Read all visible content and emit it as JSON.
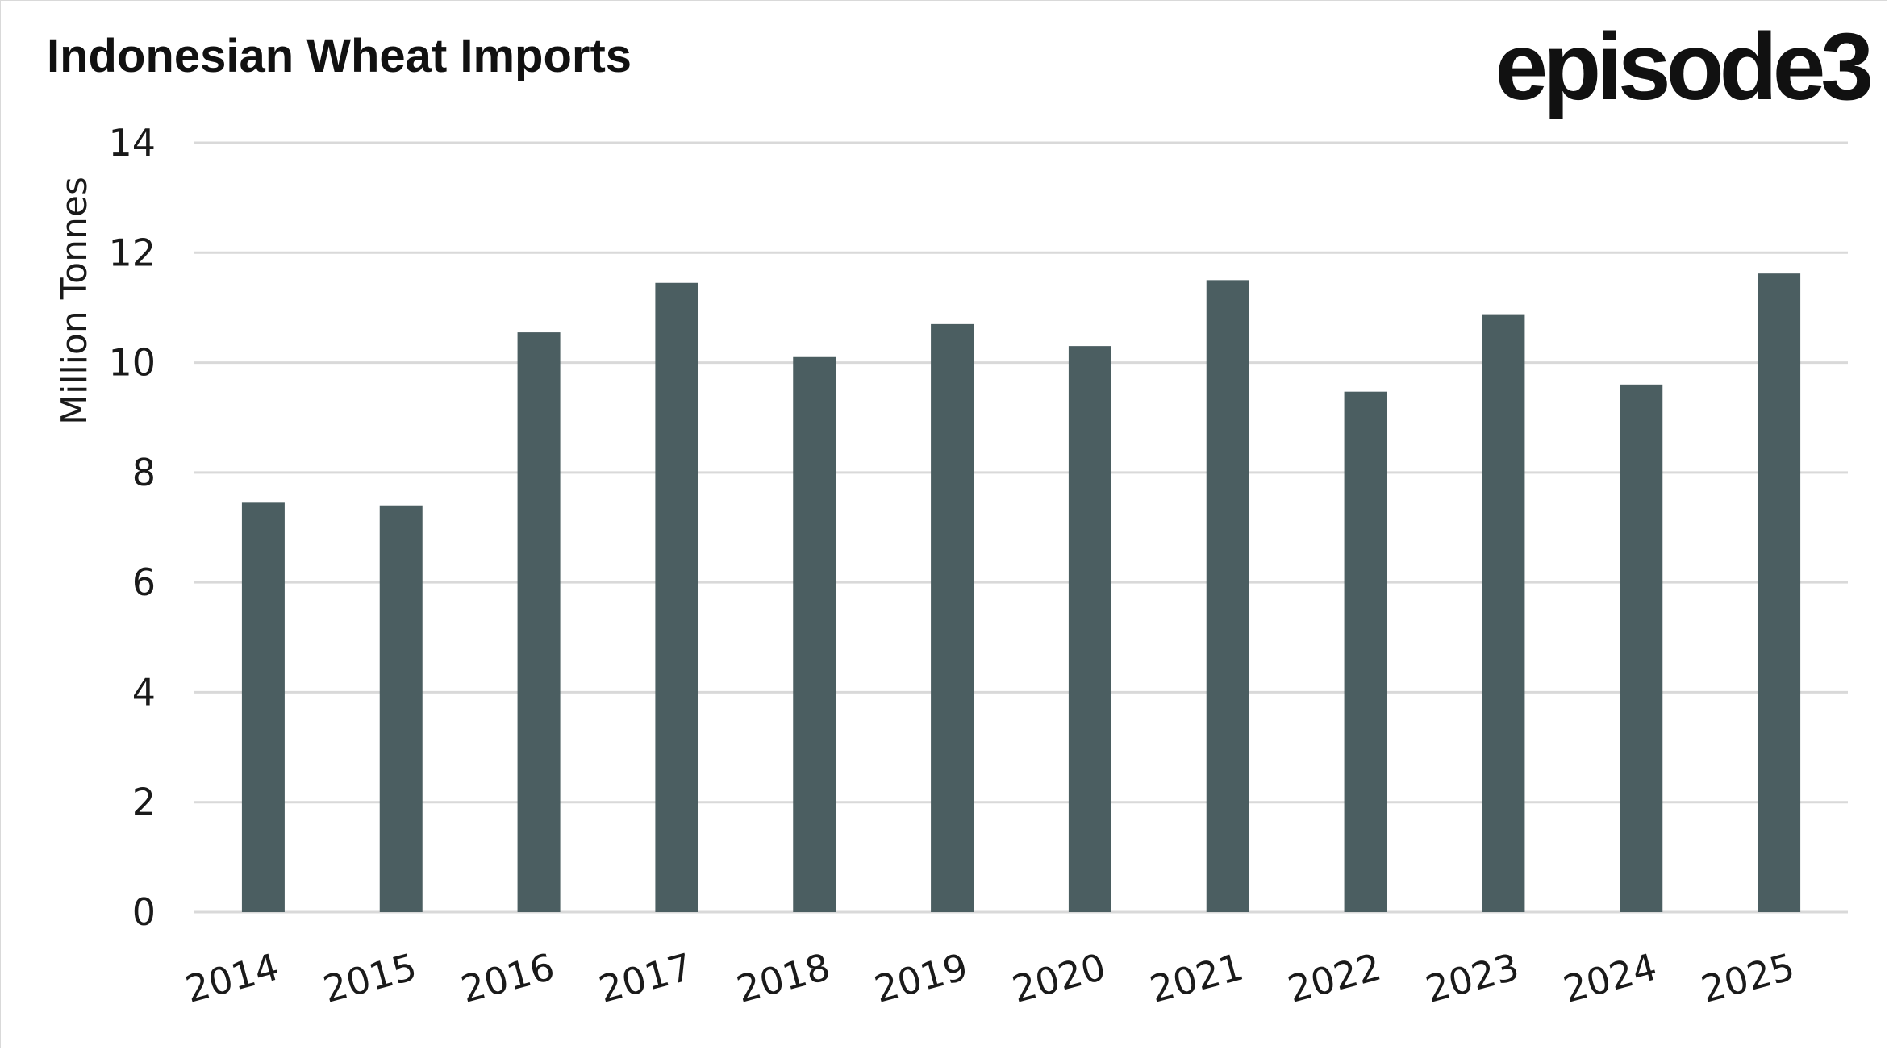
{
  "chart_data": {
    "type": "bar",
    "title": "Indonesian Wheat Imports",
    "xlabel": "",
    "ylabel": "Million Tonnes",
    "categories": [
      "2014",
      "2015",
      "2016",
      "2017",
      "2018",
      "2019",
      "2020",
      "2021",
      "2022",
      "2023",
      "2024",
      "2025"
    ],
    "values": [
      7.45,
      7.4,
      10.55,
      11.45,
      10.1,
      10.7,
      10.3,
      11.5,
      9.47,
      10.88,
      9.6,
      11.62
    ],
    "ylim": [
      0,
      14
    ],
    "yticks": [
      "0",
      "2",
      "4",
      "6",
      "8",
      "10",
      "12",
      "14"
    ],
    "grid": true,
    "legend": "none",
    "bar_color": "#4b5e61",
    "grid_color": "#d9d9d9"
  },
  "logo": {
    "text": "episode3"
  }
}
